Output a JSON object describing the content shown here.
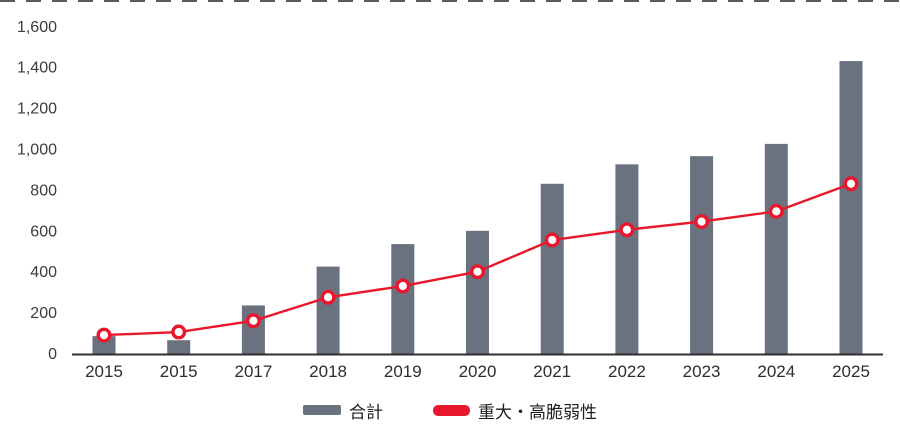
{
  "chart_data": {
    "type": "bar",
    "subtype": "bar+line-combo",
    "title": "",
    "xlabel": "",
    "ylabel": "",
    "categories": [
      "2015",
      "2015",
      "2017",
      "2018",
      "2019",
      "2020",
      "2021",
      "2022",
      "2023",
      "2024",
      "2025"
    ],
    "series": [
      {
        "name": "合計",
        "type": "bar",
        "color": "#6a7280",
        "values": [
          85,
          65,
          235,
          425,
          535,
          600,
          830,
          925,
          965,
          1025,
          1430
        ]
      },
      {
        "name": "重大・高脆弱性",
        "type": "line",
        "color": "#e8172c",
        "marker": "open-circle",
        "values": [
          90,
          105,
          160,
          275,
          330,
          400,
          555,
          605,
          645,
          695,
          830
        ]
      }
    ],
    "ylim": [
      0,
      1600
    ],
    "ytick_interval": 200,
    "ytick_labels": [
      "0",
      "200",
      "400",
      "600",
      "800",
      "1,000",
      "1,200",
      "1,400",
      "1,600"
    ],
    "grid": false,
    "legend_position": "bottom"
  },
  "legend": {
    "items": [
      {
        "label": "合計",
        "color": "#6a7280",
        "shape": "bar"
      },
      {
        "label": "重大・高脆弱性",
        "color": "#e8172c",
        "shape": "line"
      }
    ]
  },
  "colors": {
    "background": "#ffffff",
    "axis_line": "#2f2f2f",
    "tick_text": "#3c3c3c",
    "bar": "#6a7280",
    "line": "#e8172c",
    "marker_fill": "#ffffff"
  }
}
